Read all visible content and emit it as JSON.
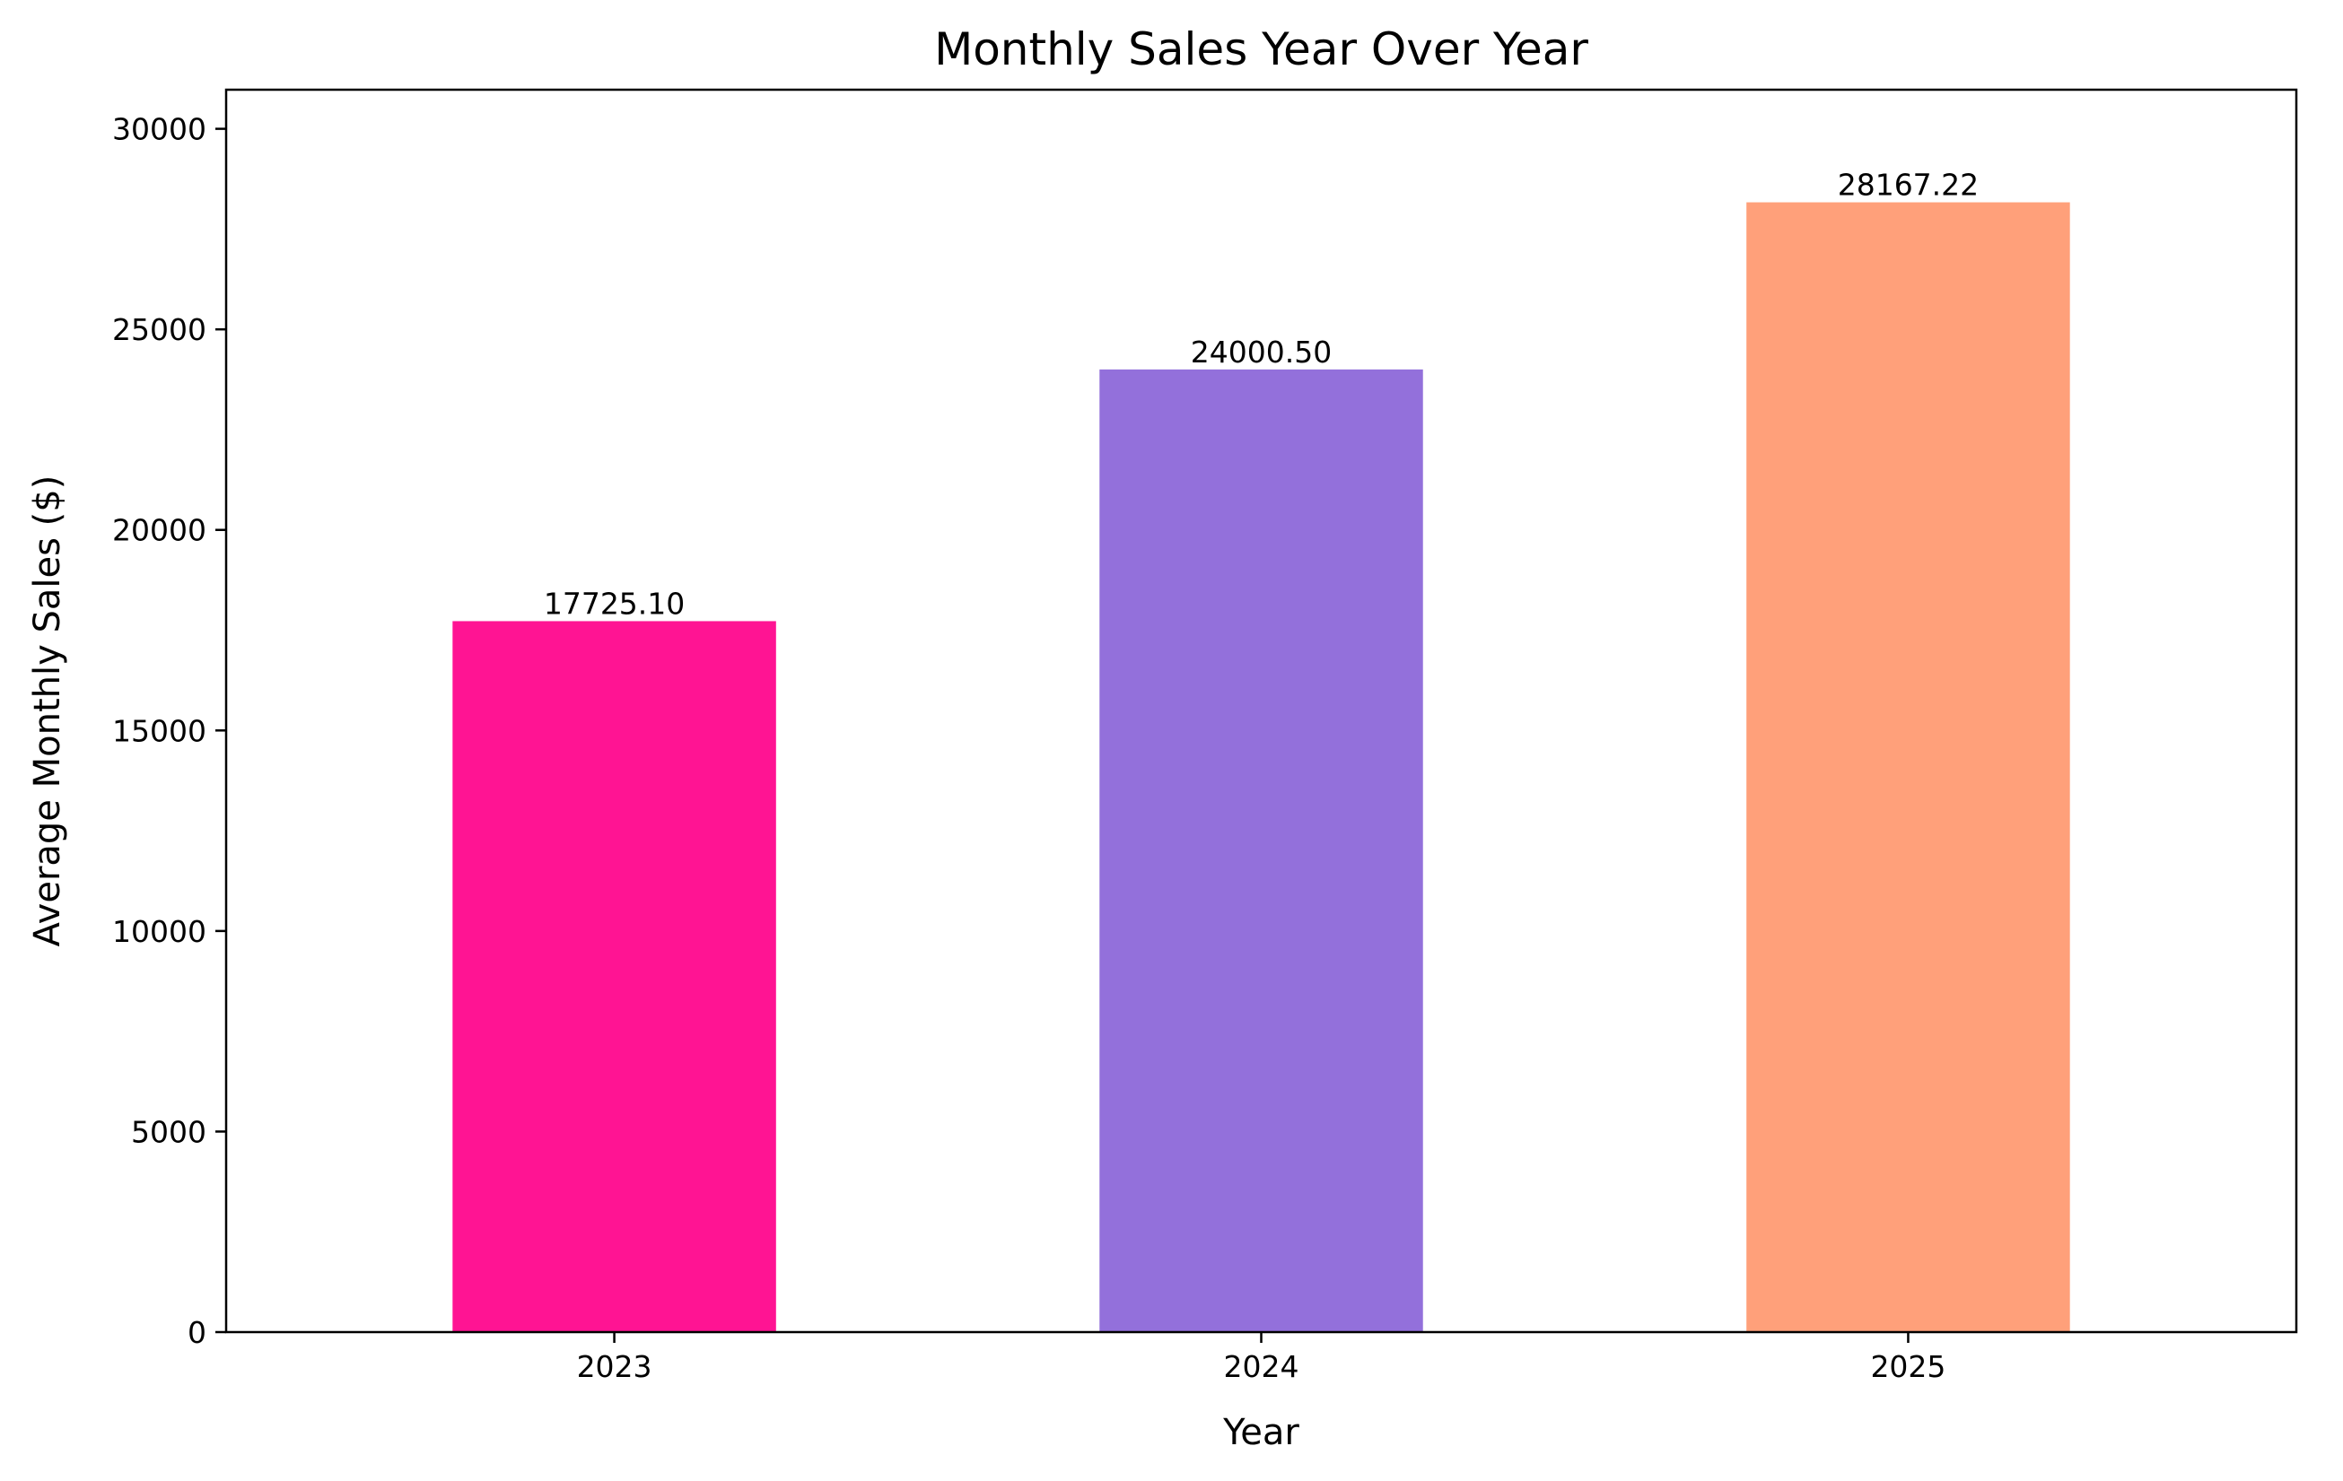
{
  "chart_data": {
    "type": "bar",
    "title": "Monthly Sales Year Over Year",
    "xlabel": "Year",
    "ylabel": "Average Monthly Sales ($)",
    "categories": [
      "2023",
      "2024",
      "2025"
    ],
    "values": [
      17725.1,
      24000.5,
      28167.22
    ],
    "value_labels": [
      "17725.10",
      "24000.50",
      "28167.22"
    ],
    "colors": [
      "#ff1493",
      "#9370db",
      "#ffa07a"
    ],
    "ylim": [
      0,
      30975
    ],
    "yticks": [
      0,
      5000,
      10000,
      15000,
      20000,
      25000,
      30000
    ],
    "grid": false,
    "legend": "none"
  }
}
